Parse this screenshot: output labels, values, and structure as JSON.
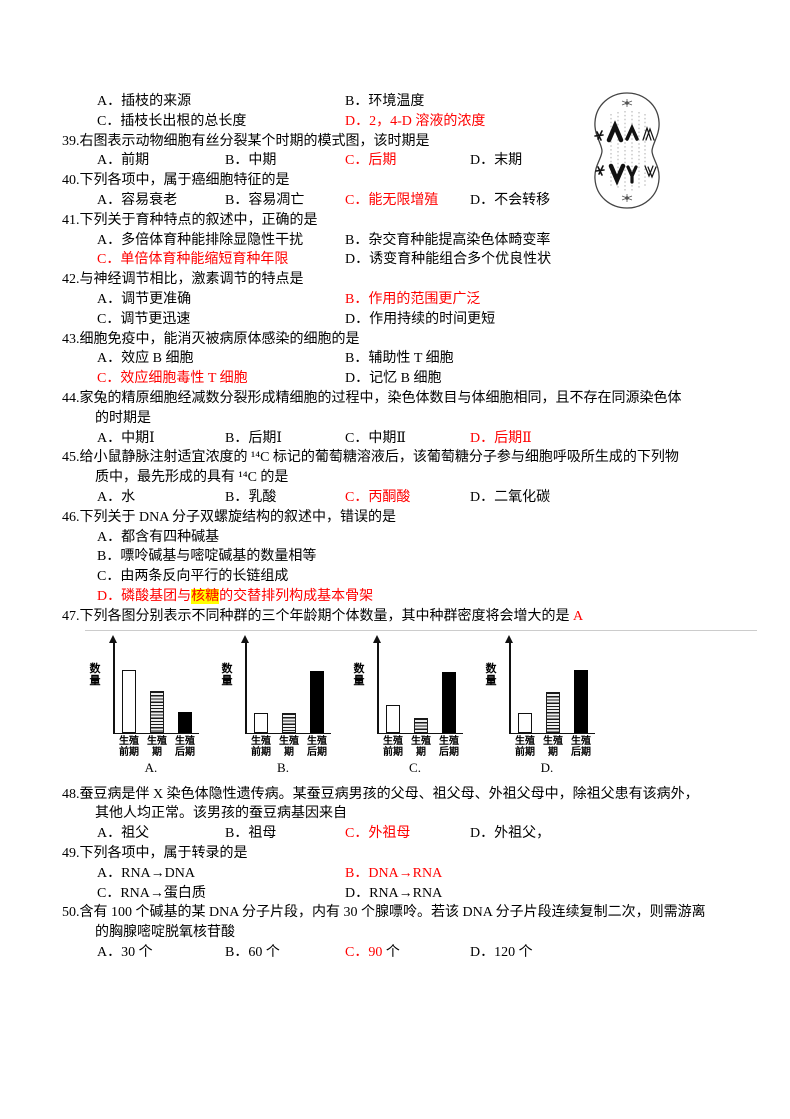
{
  "page": {
    "background": "#ffffff",
    "text_color": "#000000",
    "answer_red": "#ff0000",
    "highlight_yellow": "#ffff00"
  },
  "figures": {
    "mitosis_cell": "animal-cell-mitosis-anaphase-diagram"
  },
  "document": {
    "lines": [
      {
        "type": "options",
        "layout": "o2",
        "cells": [
          [
            {
              "t": "A．插枝的来源"
            }
          ],
          [
            {
              "t": "B．环境温度"
            }
          ]
        ]
      },
      {
        "type": "options",
        "layout": "o2",
        "cells": [
          [
            {
              "t": "C．插枝长出根的总长度"
            }
          ],
          [
            {
              "t": "D．2，4-D 溶液的浓度",
              "c": "r"
            }
          ]
        ]
      },
      {
        "type": "stem",
        "runs": [
          {
            "t": "39.右图表示动物细胞有丝分裂某个时期的模式图，该时期是"
          }
        ]
      },
      {
        "type": "options",
        "layout": "o4",
        "cells": [
          [
            {
              "t": "A．前期"
            }
          ],
          [
            {
              "t": "B．中期"
            }
          ],
          [
            {
              "t": "C．后期",
              "c": "r"
            }
          ],
          [
            {
              "t": "D．末期"
            }
          ]
        ]
      },
      {
        "type": "stem",
        "runs": [
          {
            "t": "40.下列各项中，属于癌细胞特征的是"
          }
        ]
      },
      {
        "type": "options",
        "layout": "o4",
        "cells": [
          [
            {
              "t": "A．容易衰老"
            }
          ],
          [
            {
              "t": "B．容易凋亡"
            }
          ],
          [
            {
              "t": "C．能无限增殖",
              "c": "r"
            }
          ],
          [
            {
              "t": "D．不会转移"
            }
          ]
        ]
      },
      {
        "type": "stem",
        "runs": [
          {
            "t": "41.下列关于育种特点的叙述中，正确的是"
          }
        ]
      },
      {
        "type": "options",
        "layout": "o2",
        "cells": [
          [
            {
              "t": "A．多倍体育种能排除显隐性干扰"
            }
          ],
          [
            {
              "t": "B．杂交育种能提高染色体畸变率"
            }
          ]
        ]
      },
      {
        "type": "options",
        "layout": "o2",
        "cells": [
          [
            {
              "t": "C．单倍体育种能缩短育种年限",
              "c": "r"
            }
          ],
          [
            {
              "t": "D．诱变育种能组合多个优良性状"
            }
          ]
        ]
      },
      {
        "type": "stem",
        "runs": [
          {
            "t": "42.与神经调节相比，激素调节的特点是"
          }
        ]
      },
      {
        "type": "options",
        "layout": "o2",
        "cells": [
          [
            {
              "t": "A．调节更准确"
            }
          ],
          [
            {
              "t": "B．作用的范围更广泛",
              "c": "r"
            }
          ]
        ]
      },
      {
        "type": "options",
        "layout": "o2",
        "cells": [
          [
            {
              "t": "C．调节更迅速"
            }
          ],
          [
            {
              "t": "D．作用持续的时间更短"
            }
          ]
        ]
      },
      {
        "type": "stem",
        "runs": [
          {
            "t": "43.细胞免疫中，能消灭被病原体感染的细胞的是"
          }
        ]
      },
      {
        "type": "options",
        "layout": "o2",
        "cells": [
          [
            {
              "t": "A．效应 B 细胞"
            }
          ],
          [
            {
              "t": "B．辅助性 T 细胞"
            }
          ]
        ]
      },
      {
        "type": "options",
        "layout": "o2",
        "cells": [
          [
            {
              "t": "C．效应细胞毒性 T 细胞",
              "c": "r"
            }
          ],
          [
            {
              "t": "D．记忆 B 细胞"
            }
          ]
        ]
      },
      {
        "type": "stem",
        "runs": [
          {
            "t": "44.家兔的精原细胞经减数分裂形成精细胞的过程中，染色体数目与体细胞相同，且不存在同源染色体"
          }
        ]
      },
      {
        "type": "cont",
        "runs": [
          {
            "t": "的时期是"
          }
        ]
      },
      {
        "type": "options",
        "layout": "o4",
        "cells": [
          [
            {
              "t": "A．中期Ⅰ"
            }
          ],
          [
            {
              "t": "B．后期Ⅰ"
            }
          ],
          [
            {
              "t": "C．中期Ⅱ"
            }
          ],
          [
            {
              "t": "D．后期Ⅱ",
              "c": "r"
            }
          ]
        ]
      },
      {
        "type": "stem",
        "runs": [
          {
            "t": "45.给小鼠静脉注射适宜浓度的 ¹⁴C 标记的葡萄糖溶液后，该葡萄糖分子参与细胞呼吸所生成的下列物"
          }
        ]
      },
      {
        "type": "cont",
        "runs": [
          {
            "t": "质中，最先形成的具有 ¹⁴C 的是"
          }
        ]
      },
      {
        "type": "options",
        "layout": "o4",
        "cells": [
          [
            {
              "t": "A．水"
            }
          ],
          [
            {
              "t": "B．乳酸"
            }
          ],
          [
            {
              "t": "C．丙酮酸",
              "c": "r"
            }
          ],
          [
            {
              "t": "D．二氧化碳"
            }
          ]
        ]
      },
      {
        "type": "stem",
        "runs": [
          {
            "t": "46.下列关于 DNA 分子双螺旋结构的叙述中，错误的是"
          }
        ]
      },
      {
        "type": "options",
        "layout": "o1",
        "cells": [
          [
            {
              "t": "A．都含有四种碱基"
            }
          ]
        ]
      },
      {
        "type": "options",
        "layout": "o1",
        "cells": [
          [
            {
              "t": "B．嘌呤碱基与嘧啶碱基的数量相等"
            }
          ]
        ]
      },
      {
        "type": "options",
        "layout": "o1",
        "cells": [
          [
            {
              "t": "C．由两条反向平行的长链组成"
            }
          ]
        ]
      },
      {
        "type": "options",
        "layout": "o1",
        "cells": [
          [
            {
              "t": "D．磷酸基团与",
              "c": "r"
            },
            {
              "t": "核糖",
              "c": "r",
              "bg": "y"
            },
            {
              "t": "的交替排列构成基本骨架",
              "c": "r"
            }
          ]
        ]
      },
      {
        "type": "stem",
        "runs": [
          {
            "t": "47.下列各图分别表示不同种群的三个年龄期个体数量，其中种群密度将会增大的是 "
          },
          {
            "t": "A",
            "c": "r"
          }
        ]
      },
      {
        "type": "charts"
      },
      {
        "type": "stem",
        "runs": [
          {
            "t": "48.蚕豆病是伴 X 染色体隐性遗传病。某蚕豆病男孩的父母、祖父母、外祖父母中，除祖父患有该病外，"
          }
        ]
      },
      {
        "type": "cont",
        "runs": [
          {
            "t": "其他人均正常。该男孩的蚕豆病基因来自"
          }
        ]
      },
      {
        "type": "options",
        "layout": "o4",
        "cells": [
          [
            {
              "t": "A．祖父"
            }
          ],
          [
            {
              "t": "B．祖母"
            }
          ],
          [
            {
              "t": "C．外祖母",
              "c": "r"
            }
          ],
          [
            {
              "t": "D．外祖父，"
            }
          ]
        ]
      },
      {
        "type": "stem",
        "runs": [
          {
            "t": "49.下列各项中，属于转录的是"
          }
        ]
      },
      {
        "type": "options",
        "layout": "o2",
        "cells": [
          [
            {
              "t": "A．RNA→DNA"
            }
          ],
          [
            {
              "t": "B．DNA→RNA",
              "c": "r"
            }
          ]
        ]
      },
      {
        "type": "options",
        "layout": "o2",
        "cells": [
          [
            {
              "t": "C．RNA→蛋白质"
            }
          ],
          [
            {
              "t": "D．RNA→RNA"
            }
          ]
        ]
      },
      {
        "type": "stem",
        "runs": [
          {
            "t": "50.含有 100 个碱基的某 DNA 分子片段，内有 30 个腺嘌呤。若该 DNA 分子片段连续复制二次，则需游离"
          }
        ]
      },
      {
        "type": "cont",
        "runs": [
          {
            "t": "的胸腺嘧啶脱氧核苷酸"
          }
        ]
      },
      {
        "type": "options",
        "layout": "o4",
        "cells": [
          [
            {
              "t": "A．30 个"
            }
          ],
          [
            {
              "t": "B．60 个"
            }
          ],
          [
            {
              "t": "C．90 ",
              "c": "r"
            },
            {
              "t": "个"
            }
          ],
          [
            {
              "t": "D．120 个"
            }
          ]
        ]
      }
    ]
  },
  "chart_data": {
    "type": "bar",
    "question": "47",
    "title": "",
    "xlabel": "",
    "ylabel": "数量",
    "categories": [
      "生殖前期",
      "生殖期",
      "生殖后期"
    ],
    "cat_lines": [
      [
        "生殖",
        "前期"
      ],
      [
        "生殖",
        "期"
      ],
      [
        "生殖",
        "后期"
      ]
    ],
    "series": [
      {
        "name": "A.",
        "values": [
          75,
          50,
          25
        ]
      },
      {
        "name": "B.",
        "values": [
          24,
          24,
          74
        ]
      },
      {
        "name": "C.",
        "values": [
          33,
          17,
          73
        ]
      },
      {
        "name": "D.",
        "values": [
          24,
          49,
          75
        ]
      }
    ],
    "ylim": [
      0,
      100
    ],
    "grid": false,
    "legend": false,
    "axis_arrow": true,
    "bar_styles": [
      "white-outline",
      "horizontal-hatch",
      "solid-black"
    ]
  }
}
